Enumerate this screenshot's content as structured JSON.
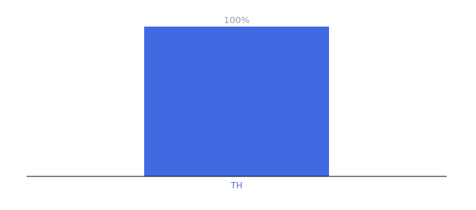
{
  "chart_data": {
    "type": "bar",
    "categories": [
      "TH"
    ],
    "values": [
      100
    ],
    "value_labels": [
      "100%"
    ],
    "color": "#4169e1",
    "ylim": [
      0,
      100
    ],
    "data_labels": true,
    "tick_labels": "x",
    "grid": false
  }
}
